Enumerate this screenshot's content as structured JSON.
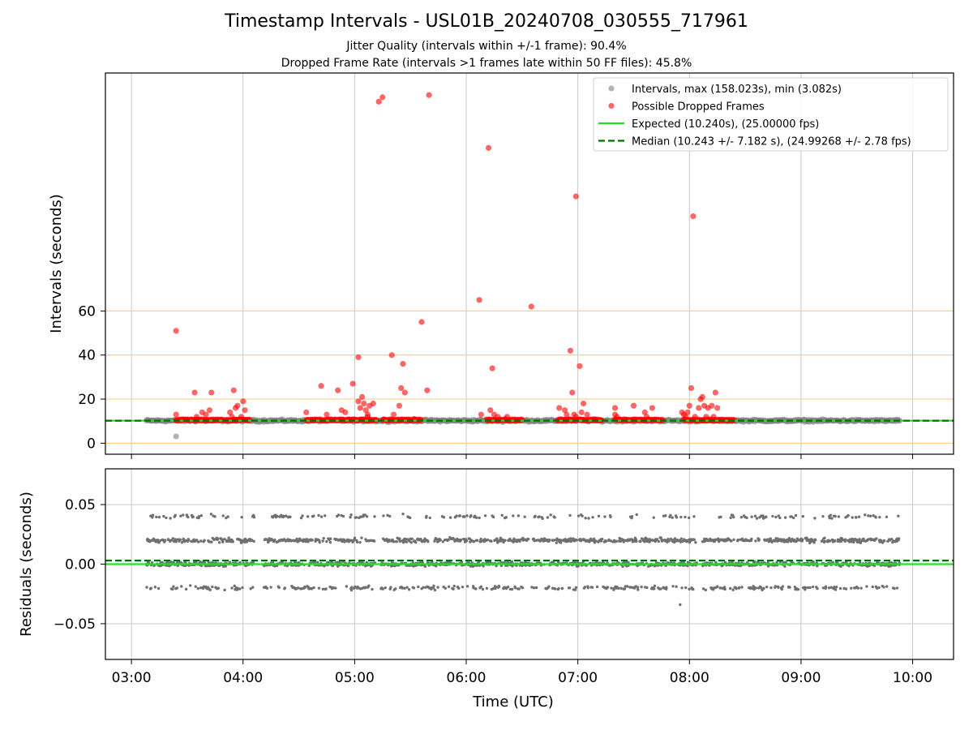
{
  "chart_data": [
    {
      "type": "scatter",
      "title": "Timestamp Intervals - USL01B_20240708_030555_717961",
      "subtitle_lines": [
        "Jitter Quality (intervals within +/-1 frame): 90.4%",
        "Dropped Frame Rate (intervals >1 frames late within 50 FF files): 45.8%"
      ],
      "xlabel": "",
      "ylabel": "Intervals (seconds)",
      "x_ticks": [
        "03:00",
        "04:00",
        "05:00",
        "06:00",
        "07:00",
        "08:00",
        "09:00",
        "10:00"
      ],
      "xlim": [
        "02:46",
        "10:22"
      ],
      "y_ticks": [
        0,
        20,
        40,
        60
      ],
      "ylim": [
        -5,
        168
      ],
      "reference_lines_y": [
        0,
        20,
        40,
        60
      ],
      "reference_line_color": "#ffd080",
      "grid": "vertical",
      "legend_position": "top-right",
      "series": [
        {
          "name": "Intervals, max (158.023s), min (3.082s)",
          "color": "#808080",
          "style": "scatter",
          "x_start": "03:08",
          "x_end": "09:53",
          "y_value": 10.24,
          "y_jitter": 1.2,
          "outliers": [
            {
              "x": "03:24",
              "y": 3.08
            }
          ]
        },
        {
          "name": "Possible Dropped Frames",
          "color": "#ff0000",
          "style": "scatter",
          "clusters": [
            {
              "x_start": "03:24",
              "x_end": "04:04"
            },
            {
              "x_start": "04:34",
              "x_end": "05:12"
            },
            {
              "x_start": "05:15",
              "x_end": "05:36"
            },
            {
              "x_start": "06:11",
              "x_end": "06:30"
            },
            {
              "x_start": "06:49",
              "x_end": "07:13"
            },
            {
              "x_start": "07:20",
              "x_end": "07:46"
            },
            {
              "x_start": "07:57",
              "x_end": "08:24"
            }
          ],
          "points": [
            {
              "x": "03:24",
              "y": 51
            },
            {
              "x": "03:24",
              "y": 13
            },
            {
              "x": "03:34",
              "y": 23
            },
            {
              "x": "03:35",
              "y": 12
            },
            {
              "x": "03:42",
              "y": 15
            },
            {
              "x": "03:43",
              "y": 23
            },
            {
              "x": "03:40",
              "y": 13
            },
            {
              "x": "03:38",
              "y": 14
            },
            {
              "x": "03:55",
              "y": 24
            },
            {
              "x": "03:56",
              "y": 16
            },
            {
              "x": "03:57",
              "y": 17
            },
            {
              "x": "03:59",
              "y": 12
            },
            {
              "x": "04:00",
              "y": 19
            },
            {
              "x": "04:01",
              "y": 15
            },
            {
              "x": "03:53",
              "y": 14
            },
            {
              "x": "03:54",
              "y": 12
            },
            {
              "x": "04:34",
              "y": 14
            },
            {
              "x": "04:42",
              "y": 26
            },
            {
              "x": "04:45",
              "y": 13
            },
            {
              "x": "04:51",
              "y": 24
            },
            {
              "x": "04:53",
              "y": 15
            },
            {
              "x": "04:55",
              "y": 14
            },
            {
              "x": "04:59",
              "y": 27
            },
            {
              "x": "05:02",
              "y": 39
            },
            {
              "x": "05:02",
              "y": 19
            },
            {
              "x": "05:03",
              "y": 16
            },
            {
              "x": "05:04",
              "y": 21
            },
            {
              "x": "05:05",
              "y": 18
            },
            {
              "x": "05:06",
              "y": 15
            },
            {
              "x": "05:07",
              "y": 13
            },
            {
              "x": "05:08",
              "y": 17
            },
            {
              "x": "05:10",
              "y": 18
            },
            {
              "x": "05:07",
              "y": 12
            },
            {
              "x": "05:13",
              "y": 155
            },
            {
              "x": "05:15",
              "y": 157
            },
            {
              "x": "05:20",
              "y": 40
            },
            {
              "x": "05:21",
              "y": 13
            },
            {
              "x": "05:24",
              "y": 17
            },
            {
              "x": "05:25",
              "y": 25
            },
            {
              "x": "05:26",
              "y": 36
            },
            {
              "x": "05:27",
              "y": 23
            },
            {
              "x": "05:32",
              "y": 11
            },
            {
              "x": "05:36",
              "y": 55
            },
            {
              "x": "05:39",
              "y": 24
            },
            {
              "x": "05:40",
              "y": 158
            },
            {
              "x": "06:07",
              "y": 65
            },
            {
              "x": "06:08",
              "y": 13
            },
            {
              "x": "06:12",
              "y": 134
            },
            {
              "x": "06:13",
              "y": 15
            },
            {
              "x": "06:14",
              "y": 34
            },
            {
              "x": "06:15",
              "y": 13
            },
            {
              "x": "06:17",
              "y": 12
            },
            {
              "x": "06:21",
              "y": 11
            },
            {
              "x": "06:22",
              "y": 12
            },
            {
              "x": "06:35",
              "y": 62
            },
            {
              "x": "06:50",
              "y": 16
            },
            {
              "x": "06:53",
              "y": 15
            },
            {
              "x": "06:54",
              "y": 13
            },
            {
              "x": "06:56",
              "y": 42
            },
            {
              "x": "06:57",
              "y": 23
            },
            {
              "x": "06:58",
              "y": 13
            },
            {
              "x": "06:59",
              "y": 12
            },
            {
              "x": "06:59",
              "y": 112
            },
            {
              "x": "07:01",
              "y": 35
            },
            {
              "x": "07:02",
              "y": 14
            },
            {
              "x": "07:03",
              "y": 18
            },
            {
              "x": "07:05",
              "y": 13
            },
            {
              "x": "07:20",
              "y": 16
            },
            {
              "x": "07:20",
              "y": 13
            },
            {
              "x": "07:21",
              "y": 12
            },
            {
              "x": "07:30",
              "y": 17
            },
            {
              "x": "07:36",
              "y": 14
            },
            {
              "x": "07:37",
              "y": 12
            },
            {
              "x": "07:40",
              "y": 16
            },
            {
              "x": "07:56",
              "y": 14
            },
            {
              "x": "07:57",
              "y": 13
            },
            {
              "x": "07:58",
              "y": 12
            },
            {
              "x": "07:59",
              "y": 14
            },
            {
              "x": "08:00",
              "y": 17
            },
            {
              "x": "08:01",
              "y": 25
            },
            {
              "x": "08:02",
              "y": 103
            },
            {
              "x": "08:03",
              "y": 12
            },
            {
              "x": "08:05",
              "y": 16
            },
            {
              "x": "08:06",
              "y": 20
            },
            {
              "x": "08:07",
              "y": 21
            },
            {
              "x": "08:08",
              "y": 17
            },
            {
              "x": "08:09",
              "y": 12
            },
            {
              "x": "08:10",
              "y": 16
            },
            {
              "x": "08:12",
              "y": 17
            },
            {
              "x": "08:13",
              "y": 12
            },
            {
              "x": "08:14",
              "y": 23
            },
            {
              "x": "08:15",
              "y": 16
            }
          ]
        },
        {
          "name": "Expected (10.240s), (25.00000 fps)",
          "color": "#22e022",
          "style": "solid-line",
          "y": 10.24
        },
        {
          "name": "Median (10.243 +/- 7.182 s), (24.99268 +/- 2.78 fps)",
          "color": "#007000",
          "style": "dashed-line",
          "y": 10.243
        }
      ]
    },
    {
      "type": "scatter",
      "title": "",
      "xlabel": "Time (UTC)",
      "ylabel": "Residuals (seconds)",
      "x_ticks": [
        "03:00",
        "04:00",
        "05:00",
        "06:00",
        "07:00",
        "08:00",
        "09:00",
        "10:00"
      ],
      "xlim": [
        "02:46",
        "10:22"
      ],
      "y_ticks": [
        "0.05",
        "0.00",
        "−0.05"
      ],
      "y_tick_values": [
        0.05,
        0.0,
        -0.05
      ],
      "ylim": [
        -0.08,
        0.08
      ],
      "grid": "both",
      "series": [
        {
          "color": "#707070",
          "style": "scatter",
          "x_start": "03:08",
          "x_end": "09:53",
          "levels": [
            -0.02,
            0.0,
            0.02,
            0.04
          ],
          "level_weights": [
            0.15,
            0.4,
            0.37,
            0.08
          ],
          "level_spread": 0.0025,
          "gaps": [
            [
              "04:06",
              "04:11"
            ],
            [
              "05:11",
              "05:14"
            ],
            [
              "08:04",
              "08:07"
            ],
            [
              "09:09",
              "09:11"
            ]
          ],
          "outliers": [
            {
              "x": "07:55",
              "y": -0.034
            }
          ]
        },
        {
          "color": "#22e022",
          "style": "solid-line",
          "y": 0.0
        },
        {
          "color": "#007000",
          "style": "dashed-line",
          "y": 0.003
        }
      ]
    }
  ]
}
